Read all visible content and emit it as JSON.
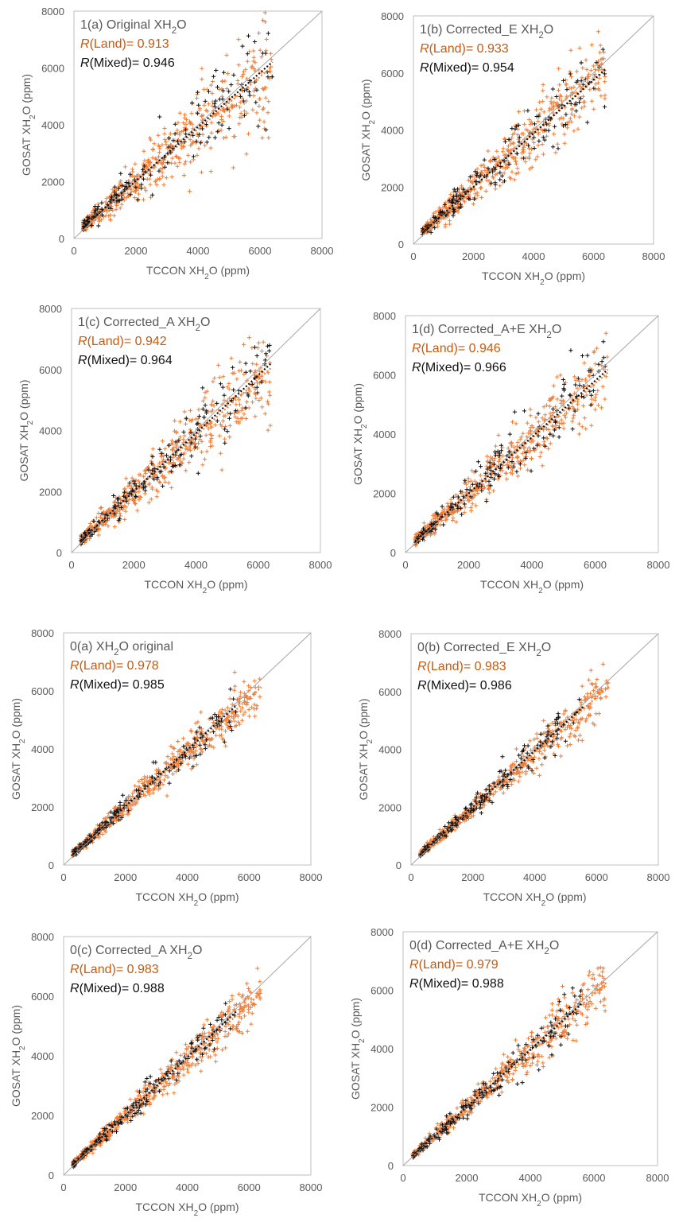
{
  "colors": {
    "land": "#ee7f3a",
    "land_dark": "#c55a11",
    "mixed": "#111111",
    "frame": "#bfbfbf",
    "one_to_one": "#a6a6a6",
    "text": "#595959"
  },
  "chart_data": [
    {
      "type": "scatter",
      "title_prefix": "1(a) Original XH",
      "title_sub": "2",
      "title_suffix": "O",
      "r_land_label": "R",
      "r_land_rest": "(Land)= 0.913",
      "r_mixed_label": "R",
      "r_mixed_rest": "(Mixed)= 0.946",
      "xlabel_prefix": "TCCON XH",
      "xlabel_sub": "2",
      "xlabel_suffix": "O (ppm)",
      "ylabel_prefix": "GOSAT XH",
      "ylabel_sub": "2",
      "ylabel_suffix": "O (ppm)",
      "xlim": [
        0,
        8000
      ],
      "ylim": [
        0,
        8000
      ],
      "xticks": [
        "0",
        "2000",
        "4000",
        "6000",
        "8000"
      ],
      "yticks": [
        "0",
        "2000",
        "4000",
        "6000",
        "8000"
      ],
      "series": [
        {
          "name": "Land",
          "marker": "+",
          "color": "#ee7f3a",
          "regression": {
            "slope": 0.92,
            "intercept": 170
          },
          "correlation": 0.913,
          "x_range": [
            300,
            6400
          ]
        },
        {
          "name": "Mixed",
          "marker": "+",
          "color": "#111111",
          "regression": {
            "slope": 0.95,
            "intercept": 130
          },
          "correlation": 0.946,
          "x_range": [
            300,
            6400
          ]
        }
      ]
    },
    {
      "type": "scatter",
      "title_prefix": "1(b) Corrected_E XH",
      "title_sub": "2",
      "title_suffix": "O",
      "r_land_label": "R",
      "r_land_rest": "(Land)= 0.933",
      "r_mixed_label": "R",
      "r_mixed_rest": "(Mixed)= 0.954",
      "xlabel_prefix": "TCCON XH",
      "xlabel_sub": "2",
      "xlabel_suffix": "O (ppm)",
      "ylabel_prefix": "GOSAT XH",
      "ylabel_sub": "2",
      "ylabel_suffix": "O (ppm)",
      "xlim": [
        0,
        8000
      ],
      "ylim": [
        0,
        8000
      ],
      "xticks": [
        "0",
        "2000",
        "4000",
        "6000",
        "8000"
      ],
      "yticks": [
        "0",
        "2000",
        "4000",
        "6000",
        "8000"
      ],
      "series": [
        {
          "name": "Land",
          "marker": "+",
          "color": "#ee7f3a",
          "regression": {
            "slope": 0.93,
            "intercept": 150
          },
          "correlation": 0.933,
          "x_range": [
            300,
            6400
          ]
        },
        {
          "name": "Mixed",
          "marker": "+",
          "color": "#111111",
          "regression": {
            "slope": 0.94,
            "intercept": 120
          },
          "correlation": 0.954,
          "x_range": [
            300,
            6400
          ]
        }
      ]
    },
    {
      "type": "scatter",
      "title_prefix": "1(c) Corrected_A XH",
      "title_sub": "2",
      "title_suffix": "O",
      "r_land_label": "R",
      "r_land_rest": "(Land)= 0.942",
      "r_mixed_label": "R",
      "r_mixed_rest": "(Mixed)= 0.964",
      "xlabel_prefix": "TCCON XH",
      "xlabel_sub": "2",
      "xlabel_suffix": "O (ppm)",
      "ylabel_prefix": "GOSAT XH",
      "ylabel_sub": "2",
      "ylabel_suffix": "O (ppm)",
      "xlim": [
        0,
        8000
      ],
      "ylim": [
        0,
        8000
      ],
      "xticks": [
        "0",
        "2000",
        "4000",
        "6000",
        "8000"
      ],
      "yticks": [
        "0",
        "2000",
        "4000",
        "6000",
        "8000"
      ],
      "series": [
        {
          "name": "Land",
          "marker": "+",
          "color": "#ee7f3a",
          "regression": {
            "slope": 0.92,
            "intercept": 150
          },
          "correlation": 0.942,
          "x_range": [
            300,
            6400
          ]
        },
        {
          "name": "Mixed",
          "marker": "+",
          "color": "#111111",
          "regression": {
            "slope": 0.95,
            "intercept": 110
          },
          "correlation": 0.964,
          "x_range": [
            300,
            6400
          ]
        }
      ]
    },
    {
      "type": "scatter",
      "title_prefix": "1(d) Corrected_A+E XH",
      "title_sub": "2",
      "title_suffix": "O",
      "r_land_label": "R",
      "r_land_rest": "(Land)= 0.946",
      "r_mixed_label": "R",
      "r_mixed_rest": "(Mixed)= 0.966",
      "xlabel_prefix": "TCCON XH",
      "xlabel_sub": "2",
      "xlabel_suffix": "O (ppm)",
      "ylabel_prefix": "GOSAT XH",
      "ylabel_sub": "2",
      "ylabel_suffix": "O (ppm)",
      "xlim": [
        0,
        8000
      ],
      "ylim": [
        0,
        8000
      ],
      "xticks": [
        "0",
        "2000",
        "4000",
        "6000",
        "8000"
      ],
      "yticks": [
        "0",
        "2000",
        "4000",
        "6000",
        "8000"
      ],
      "series": [
        {
          "name": "Land",
          "marker": "+",
          "color": "#ee7f3a",
          "regression": {
            "slope": 0.93,
            "intercept": 130
          },
          "correlation": 0.946,
          "x_range": [
            300,
            6400
          ]
        },
        {
          "name": "Mixed",
          "marker": "+",
          "color": "#111111",
          "regression": {
            "slope": 0.95,
            "intercept": 100
          },
          "correlation": 0.966,
          "x_range": [
            300,
            6400
          ]
        }
      ]
    },
    {
      "type": "scatter",
      "title_prefix": "0(a) XH",
      "title_sub": "2",
      "title_suffix": "O original",
      "r_land_label": "R",
      "r_land_rest": "(Land)= 0.978",
      "r_mixed_label": "R",
      "r_mixed_rest": "(Mixed)= 0.985",
      "xlabel_prefix": "TCCON XH",
      "xlabel_sub": "2",
      "xlabel_suffix": "O (ppm)",
      "ylabel_prefix": "GOSAT XH",
      "ylabel_sub": "2",
      "ylabel_suffix": "O (ppm)",
      "xlim": [
        0,
        8000
      ],
      "ylim": [
        0,
        8000
      ],
      "xticks": [
        "0",
        "2000",
        "4000",
        "6000",
        "8000"
      ],
      "yticks": [
        "0",
        "2000",
        "4000",
        "6000",
        "8000"
      ],
      "series": [
        {
          "name": "Land",
          "marker": "+",
          "color": "#ee7f3a",
          "regression": {
            "slope": 0.94,
            "intercept": 110
          },
          "correlation": 0.978,
          "x_range": [
            300,
            6400
          ]
        },
        {
          "name": "Mixed",
          "marker": "+",
          "color": "#111111",
          "regression": {
            "slope": 0.97,
            "intercept": 80
          },
          "correlation": 0.985,
          "x_range": [
            300,
            5600
          ]
        }
      ]
    },
    {
      "type": "scatter",
      "title_prefix": "0(b) Corrected_E  XH",
      "title_sub": "2",
      "title_suffix": "O",
      "r_land_label": "R",
      "r_land_rest": "(Land)= 0.983",
      "r_mixed_label": "R",
      "r_mixed_rest": "(Mixed)= 0.986",
      "xlabel_prefix": "TCCON XH",
      "xlabel_sub": "2",
      "xlabel_suffix": "O (ppm)",
      "ylabel_prefix": "GOSAT XH",
      "ylabel_sub": "2",
      "ylabel_suffix": "O (ppm)",
      "xlim": [
        0,
        8000
      ],
      "ylim": [
        0,
        8000
      ],
      "xticks": [
        "0",
        "2000",
        "4000",
        "6000",
        "8000"
      ],
      "yticks": [
        "0",
        "2000",
        "4000",
        "6000",
        "8000"
      ],
      "series": [
        {
          "name": "Land",
          "marker": "+",
          "color": "#ee7f3a",
          "regression": {
            "slope": 0.95,
            "intercept": 100
          },
          "correlation": 0.983,
          "x_range": [
            300,
            6400
          ]
        },
        {
          "name": "Mixed",
          "marker": "+",
          "color": "#111111",
          "regression": {
            "slope": 0.97,
            "intercept": 70
          },
          "correlation": 0.986,
          "x_range": [
            300,
            5600
          ]
        }
      ]
    },
    {
      "type": "scatter",
      "title_prefix": "0(c) Corrected_A XH",
      "title_sub": "2",
      "title_suffix": "O",
      "r_land_label": "R",
      "r_land_rest": "(Land)= 0.983",
      "r_mixed_label": "R",
      "r_mixed_rest": "(Mixed)= 0.988",
      "xlabel_prefix": "TCCON XH",
      "xlabel_sub": "2",
      "xlabel_suffix": "O (ppm)",
      "ylabel_prefix": "GOSAT XH",
      "ylabel_sub": "2",
      "ylabel_suffix": "O (ppm)",
      "xlim": [
        0,
        8000
      ],
      "ylim": [
        0,
        8000
      ],
      "xticks": [
        "0",
        "2000",
        "4000",
        "6000",
        "8000"
      ],
      "yticks": [
        "0",
        "2000",
        "4000",
        "6000",
        "8000"
      ],
      "series": [
        {
          "name": "Land",
          "marker": "+",
          "color": "#ee7f3a",
          "regression": {
            "slope": 0.94,
            "intercept": 100
          },
          "correlation": 0.983,
          "x_range": [
            300,
            6400
          ]
        },
        {
          "name": "Mixed",
          "marker": "+",
          "color": "#111111",
          "regression": {
            "slope": 0.97,
            "intercept": 70
          },
          "correlation": 0.988,
          "x_range": [
            300,
            5600
          ]
        }
      ]
    },
    {
      "type": "scatter",
      "title_prefix": "0(d) Corrected_A+E XH",
      "title_sub": "2",
      "title_suffix": "O",
      "r_land_label": "R",
      "r_land_rest": "(Land)= 0.979",
      "r_mixed_label": "R",
      "r_mixed_rest": "(Mixed)= 0.988",
      "xlabel_prefix": "TCCON XH",
      "xlabel_sub": "2",
      "xlabel_suffix": "O (ppm)",
      "ylabel_prefix": "GOSAT XH",
      "ylabel_sub": "2",
      "ylabel_suffix": "O (ppm)",
      "xlim": [
        0,
        8000
      ],
      "ylim": [
        0,
        8000
      ],
      "xticks": [
        "0",
        "2000",
        "4000",
        "6000",
        "8000"
      ],
      "yticks": [
        "0",
        "2000",
        "4000",
        "6000",
        "8000"
      ],
      "series": [
        {
          "name": "Land",
          "marker": "+",
          "color": "#ee7f3a",
          "regression": {
            "slope": 0.97,
            "intercept": 60
          },
          "correlation": 0.979,
          "x_range": [
            300,
            6400
          ]
        },
        {
          "name": "Mixed",
          "marker": "+",
          "color": "#111111",
          "regression": {
            "slope": 0.98,
            "intercept": 40
          },
          "correlation": 0.988,
          "x_range": [
            300,
            5600
          ]
        }
      ]
    }
  ]
}
